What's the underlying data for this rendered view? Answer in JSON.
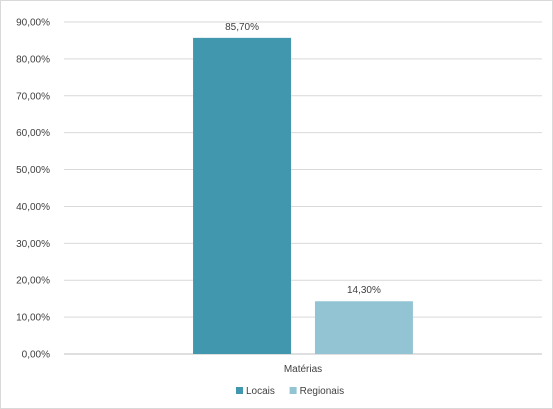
{
  "chart_data": {
    "type": "bar",
    "categories": [
      "Matérias"
    ],
    "series": [
      {
        "name": "Locais",
        "values": [
          85.7
        ],
        "label": "85,70%",
        "color": "#4097ae"
      },
      {
        "name": "Regionais",
        "values": [
          14.3
        ],
        "label": "14,30%",
        "color": "#93c4d4"
      }
    ],
    "ylim": [
      0,
      90
    ],
    "yticks": [
      0,
      10,
      20,
      30,
      40,
      50,
      60,
      70,
      80,
      90
    ],
    "ytick_labels": [
      "0,00%",
      "10,00%",
      "20,00%",
      "30,00%",
      "40,00%",
      "50,00%",
      "60,00%",
      "70,00%",
      "80,00%",
      "90,00%"
    ],
    "xtick_labels": [
      "Matérias"
    ],
    "grid": true,
    "legend_position": "bottom",
    "colors": {
      "grid": "#d9d9d9",
      "axis": "#bfbfbf",
      "text": "#404040"
    }
  }
}
